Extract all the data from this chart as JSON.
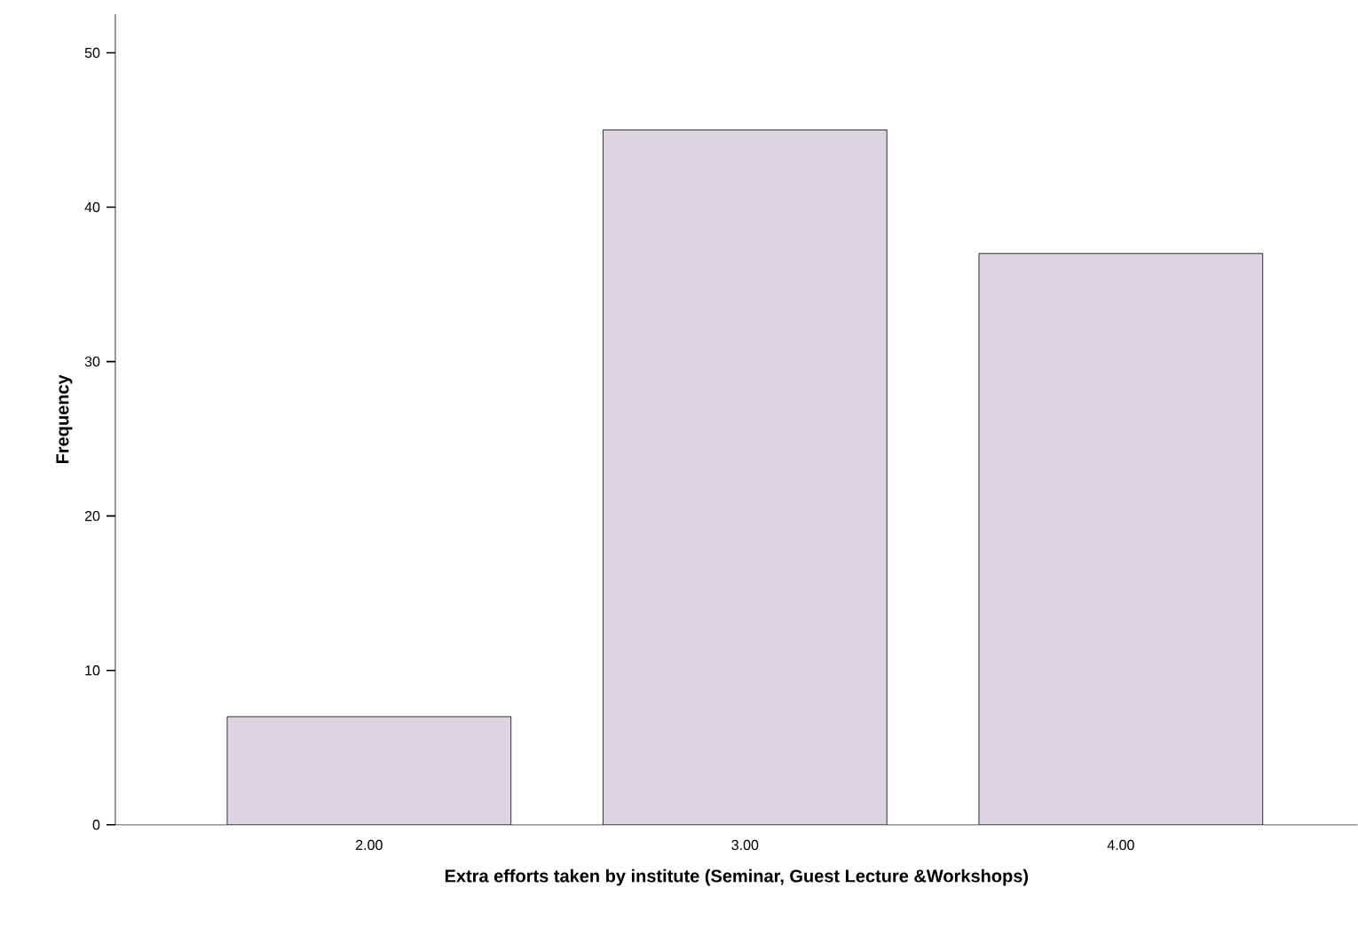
{
  "chart_data": {
    "type": "bar",
    "xlabel": "Extra efforts taken by institute (Seminar, Guest Lecture &Workshops)",
    "ylabel": "Frequency",
    "categories": [
      "2.00",
      "3.00",
      "4.00"
    ],
    "values": [
      7,
      45,
      37
    ],
    "color": "#dcd4e0",
    "ylim": [
      0,
      52.5
    ],
    "yticks": [
      0,
      10,
      20,
      30,
      40,
      50
    ]
  }
}
